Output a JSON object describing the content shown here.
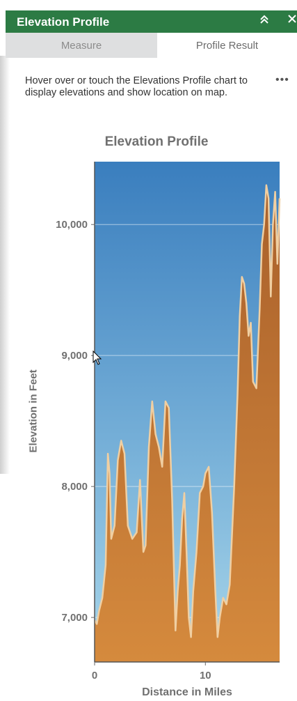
{
  "panel": {
    "title": "Elevation Profile",
    "collapse_icon": "chevrons-up-icon",
    "close_icon": "close-icon",
    "header_color": "#2c7b44"
  },
  "tabs": [
    {
      "label": "Measure",
      "active": false
    },
    {
      "label": "Profile Result",
      "active": true
    }
  ],
  "instructions": "Hover over or touch the Elevations Profile chart to display elevations and show location on map.",
  "more_icon": "more-dots-icon",
  "chart_data": {
    "type": "area",
    "title": "Elevation Profile",
    "xlabel": "Distance in Miles",
    "ylabel": "Elevation in Feet",
    "xlim": [
      0,
      16.7
    ],
    "ylim": [
      6660,
      10480
    ],
    "xticks": [
      {
        "value": 0,
        "label": "0"
      },
      {
        "value": 10,
        "label": "10"
      }
    ],
    "yticks": [
      {
        "value": 7000,
        "label": "7,000"
      },
      {
        "value": 8000,
        "label": "8,000"
      },
      {
        "value": 9000,
        "label": "9,000"
      },
      {
        "value": 10000,
        "label": "10,000"
      }
    ],
    "grid": true,
    "series": [
      {
        "fill_color": "#c07a35",
        "line_color": "#f0cfa2",
        "points": [
          [
            0,
            6980
          ],
          [
            0.2,
            6950
          ],
          [
            0.4,
            7050
          ],
          [
            0.7,
            7150
          ],
          [
            1.0,
            7400
          ],
          [
            1.2,
            8250
          ],
          [
            1.35,
            8100
          ],
          [
            1.5,
            7600
          ],
          [
            1.8,
            7700
          ],
          [
            2.1,
            8200
          ],
          [
            2.4,
            8350
          ],
          [
            2.7,
            8250
          ],
          [
            3.0,
            7700
          ],
          [
            3.4,
            7600
          ],
          [
            3.8,
            7650
          ],
          [
            4.1,
            8050
          ],
          [
            4.4,
            7500
          ],
          [
            4.6,
            7550
          ],
          [
            4.9,
            8300
          ],
          [
            5.2,
            8650
          ],
          [
            5.5,
            8400
          ],
          [
            5.8,
            8300
          ],
          [
            6.1,
            8150
          ],
          [
            6.4,
            8650
          ],
          [
            6.7,
            8600
          ],
          [
            7.0,
            7900
          ],
          [
            7.3,
            6900
          ],
          [
            7.5,
            7200
          ],
          [
            7.7,
            7400
          ],
          [
            7.9,
            7750
          ],
          [
            8.1,
            7950
          ],
          [
            8.3,
            7500
          ],
          [
            8.5,
            7000
          ],
          [
            8.7,
            6850
          ],
          [
            8.9,
            7200
          ],
          [
            9.2,
            7500
          ],
          [
            9.5,
            7950
          ],
          [
            9.8,
            8000
          ],
          [
            10.0,
            8100
          ],
          [
            10.3,
            8150
          ],
          [
            10.6,
            7800
          ],
          [
            10.9,
            7200
          ],
          [
            11.1,
            6850
          ],
          [
            11.3,
            7000
          ],
          [
            11.6,
            7150
          ],
          [
            11.9,
            7100
          ],
          [
            12.2,
            7250
          ],
          [
            12.6,
            8000
          ],
          [
            12.9,
            8700
          ],
          [
            13.1,
            9300
          ],
          [
            13.3,
            9600
          ],
          [
            13.5,
            9550
          ],
          [
            13.7,
            9400
          ],
          [
            13.9,
            9150
          ],
          [
            14.1,
            9250
          ],
          [
            14.3,
            8800
          ],
          [
            14.6,
            8750
          ],
          [
            14.9,
            9350
          ],
          [
            15.1,
            9850
          ],
          [
            15.3,
            10000
          ],
          [
            15.5,
            10300
          ],
          [
            15.7,
            10200
          ],
          [
            15.9,
            9450
          ],
          [
            16.1,
            10000
          ],
          [
            16.3,
            10250
          ],
          [
            16.5,
            9700
          ],
          [
            16.7,
            10200
          ]
        ]
      }
    ]
  }
}
